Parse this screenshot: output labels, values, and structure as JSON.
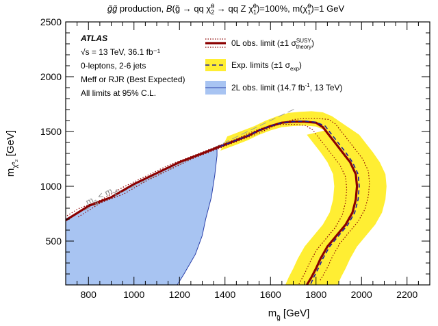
{
  "chart_data": {
    "type": "line",
    "title": "g̃g̃ production, B(g̃ → qq χ̃⁰₂ → qq Z χ̃⁰₁)=100%, m(χ̃⁰₁)=1 GeV",
    "xlabel": "m_g̃ [GeV]",
    "ylabel": "m_χ̃⁰₂ [GeV]",
    "xlim": [
      700,
      2300
    ],
    "ylim": [
      100,
      2500
    ],
    "x_ticks": [
      800,
      1000,
      1200,
      1400,
      1600,
      1800,
      2000,
      2200
    ],
    "y_ticks": [
      500,
      1000,
      1500,
      2000,
      2500
    ],
    "grid": false,
    "legend_position": "top-right",
    "info": {
      "experiment": "ATLAS",
      "energy": "√s = 13 TeV, 36.1 fb⁻¹",
      "selection": "0-leptons, 2-6 jets",
      "method": "Meff or RJR (Best Expected)",
      "cl": "All limits at 95% C.L."
    },
    "diagonal_label": "m_g̃ < m_χ̃⁰₂",
    "legend": [
      {
        "label": "0L obs. limit (±1 σ_theory^SUSY)",
        "color": "#8b0000"
      },
      {
        "label": "Exp. limits (±1 σ_exp)",
        "color": "#ffee33"
      },
      {
        "label": "2L obs. limit (14.7 fb⁻¹, 13 TeV)",
        "color": "#a8c4f2"
      }
    ],
    "series": [
      {
        "name": "0L obs. limit",
        "color": "#8b0000",
        "x": [
          700,
          800,
          900,
          1000,
          1100,
          1200,
          1300,
          1380,
          1450,
          1500,
          1550,
          1600,
          1650,
          1700,
          1750,
          1800,
          1830,
          1860,
          1890,
          1920,
          1950,
          1975,
          1980,
          1975,
          1960,
          1930,
          1890,
          1850,
          1820,
          1800,
          1780,
          1760
        ],
        "y": [
          690,
          820,
          900,
          1020,
          1120,
          1220,
          1300,
          1365,
          1420,
          1460,
          1510,
          1550,
          1580,
          1590,
          1590,
          1580,
          1540,
          1460,
          1380,
          1300,
          1220,
          1110,
          1000,
          880,
          760,
          650,
          550,
          450,
          340,
          250,
          170,
          100
        ]
      },
      {
        "name": "Exp. limits",
        "color": "#1a1aa0",
        "x": [
          1380,
          1450,
          1500,
          1550,
          1600,
          1650,
          1700,
          1750,
          1800,
          1840,
          1870,
          1900,
          1930,
          1960,
          1985,
          1990,
          1985,
          1970,
          1940,
          1900,
          1860,
          1830,
          1810,
          1790,
          1775
        ],
        "y": [
          1365,
          1420,
          1460,
          1510,
          1550,
          1580,
          1590,
          1595,
          1585,
          1550,
          1470,
          1390,
          1310,
          1220,
          1110,
          1000,
          880,
          760,
          650,
          550,
          450,
          340,
          250,
          170,
          100
        ]
      },
      {
        "name": "2L obs. limit",
        "color": "#a8c4f2",
        "x": [
          700,
          800,
          900,
          1000,
          1100,
          1200,
          1300,
          1365,
          1365,
          1355,
          1340,
          1315,
          1300,
          1270,
          1220,
          1190
        ],
        "y": [
          700,
          820,
          900,
          1020,
          1120,
          1220,
          1300,
          1360,
          1280,
          1100,
          900,
          700,
          550,
          380,
          200,
          100
        ]
      }
    ]
  }
}
